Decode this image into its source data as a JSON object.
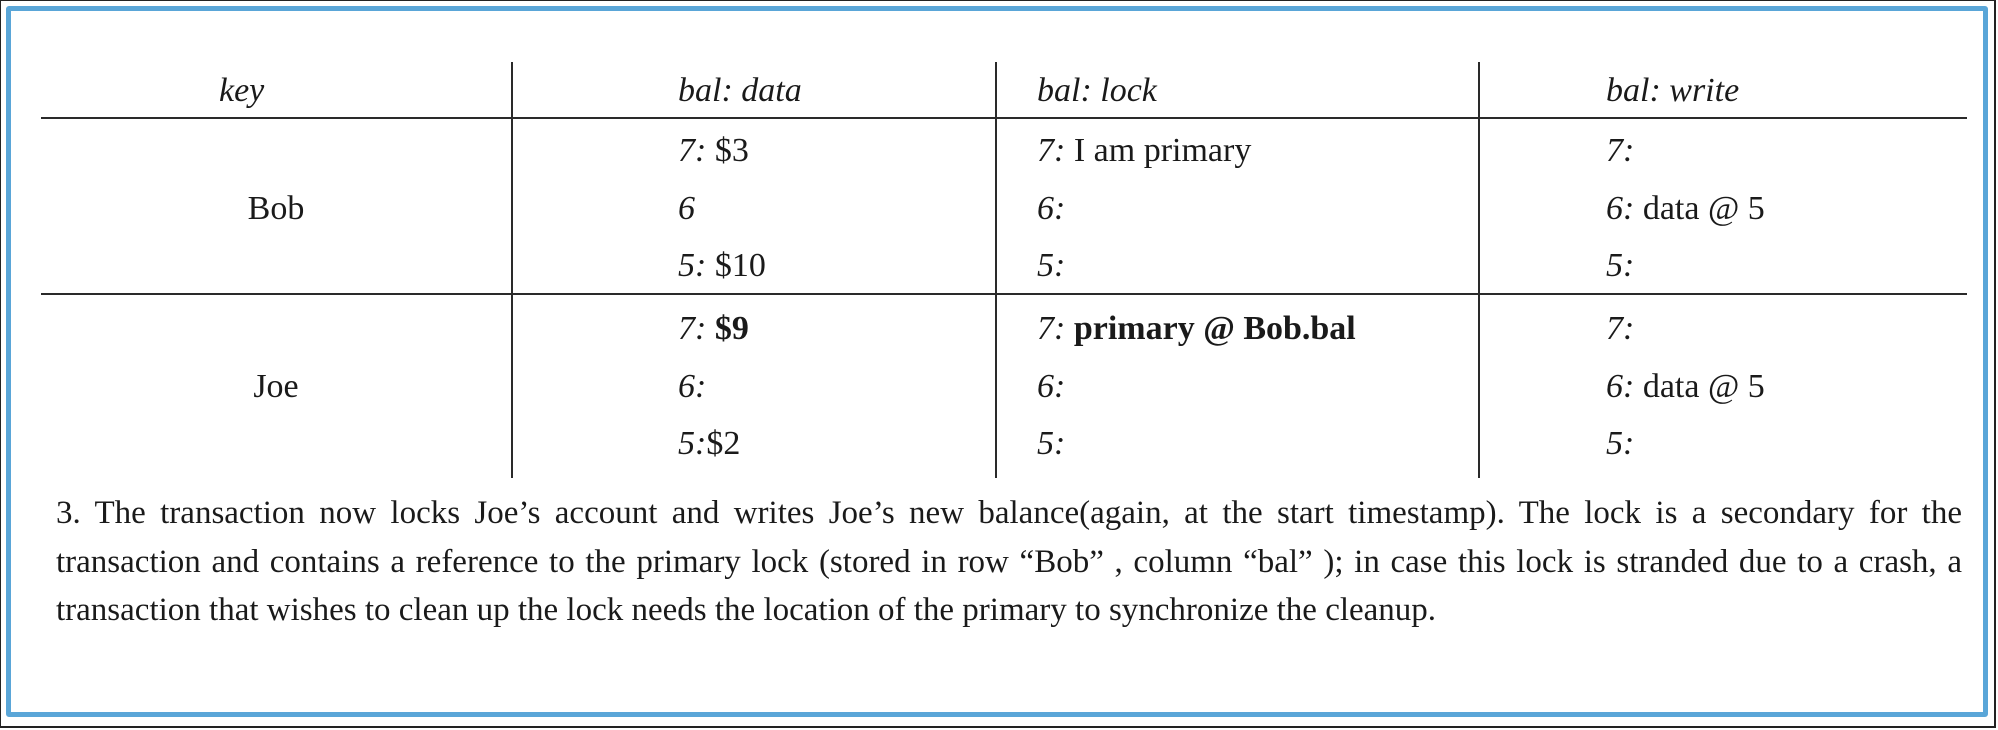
{
  "table": {
    "headers": [
      "key",
      "bal: data",
      "bal: lock",
      "bal: write"
    ],
    "rows": [
      {
        "key": "Bob",
        "data": [
          {
            "ts": "7:",
            "val": " $3",
            "bold": false
          },
          {
            "ts": "6",
            "val": "",
            "bold": false
          },
          {
            "ts": "5:",
            "val": " $10",
            "bold": false
          }
        ],
        "lock": [
          {
            "ts": "7:",
            "val": " I am primary",
            "bold": false
          },
          {
            "ts": "6:",
            "val": "",
            "bold": false
          },
          {
            "ts": "5:",
            "val": "",
            "bold": false
          }
        ],
        "write": [
          {
            "ts": "7:",
            "val": ""
          },
          {
            "ts": "6:",
            "val": " data @ 5"
          },
          {
            "ts": "5:",
            "val": ""
          }
        ]
      },
      {
        "key": "Joe",
        "data": [
          {
            "ts": "7:",
            "val": "$9",
            "bold": true
          },
          {
            "ts": "6:",
            "val": "",
            "bold": false
          },
          {
            "ts": "5:",
            "val": "$2",
            "bold": false
          }
        ],
        "lock": [
          {
            "ts": "7:",
            "val": "primary @ Bob.bal",
            "bold": true
          },
          {
            "ts": "6:",
            "val": "",
            "bold": false
          },
          {
            "ts": "5:",
            "val": "",
            "bold": false
          }
        ],
        "write": [
          {
            "ts": "7:",
            "val": ""
          },
          {
            "ts": "6:",
            "val": " data @ 5"
          },
          {
            "ts": "5:",
            "val": ""
          }
        ]
      }
    ]
  },
  "caption": "3. The transaction now locks Joe’s account and writes Joe’s new balance(again, at the start timestamp). The lock is a secondary for the transaction and contains a reference to the primary lock (stored in row “Bob” , column “bal” ); in case this lock is stranded due to a crash, a transaction that wishes to clean up the lock needs the location of the primary to synchronize the cleanup."
}
